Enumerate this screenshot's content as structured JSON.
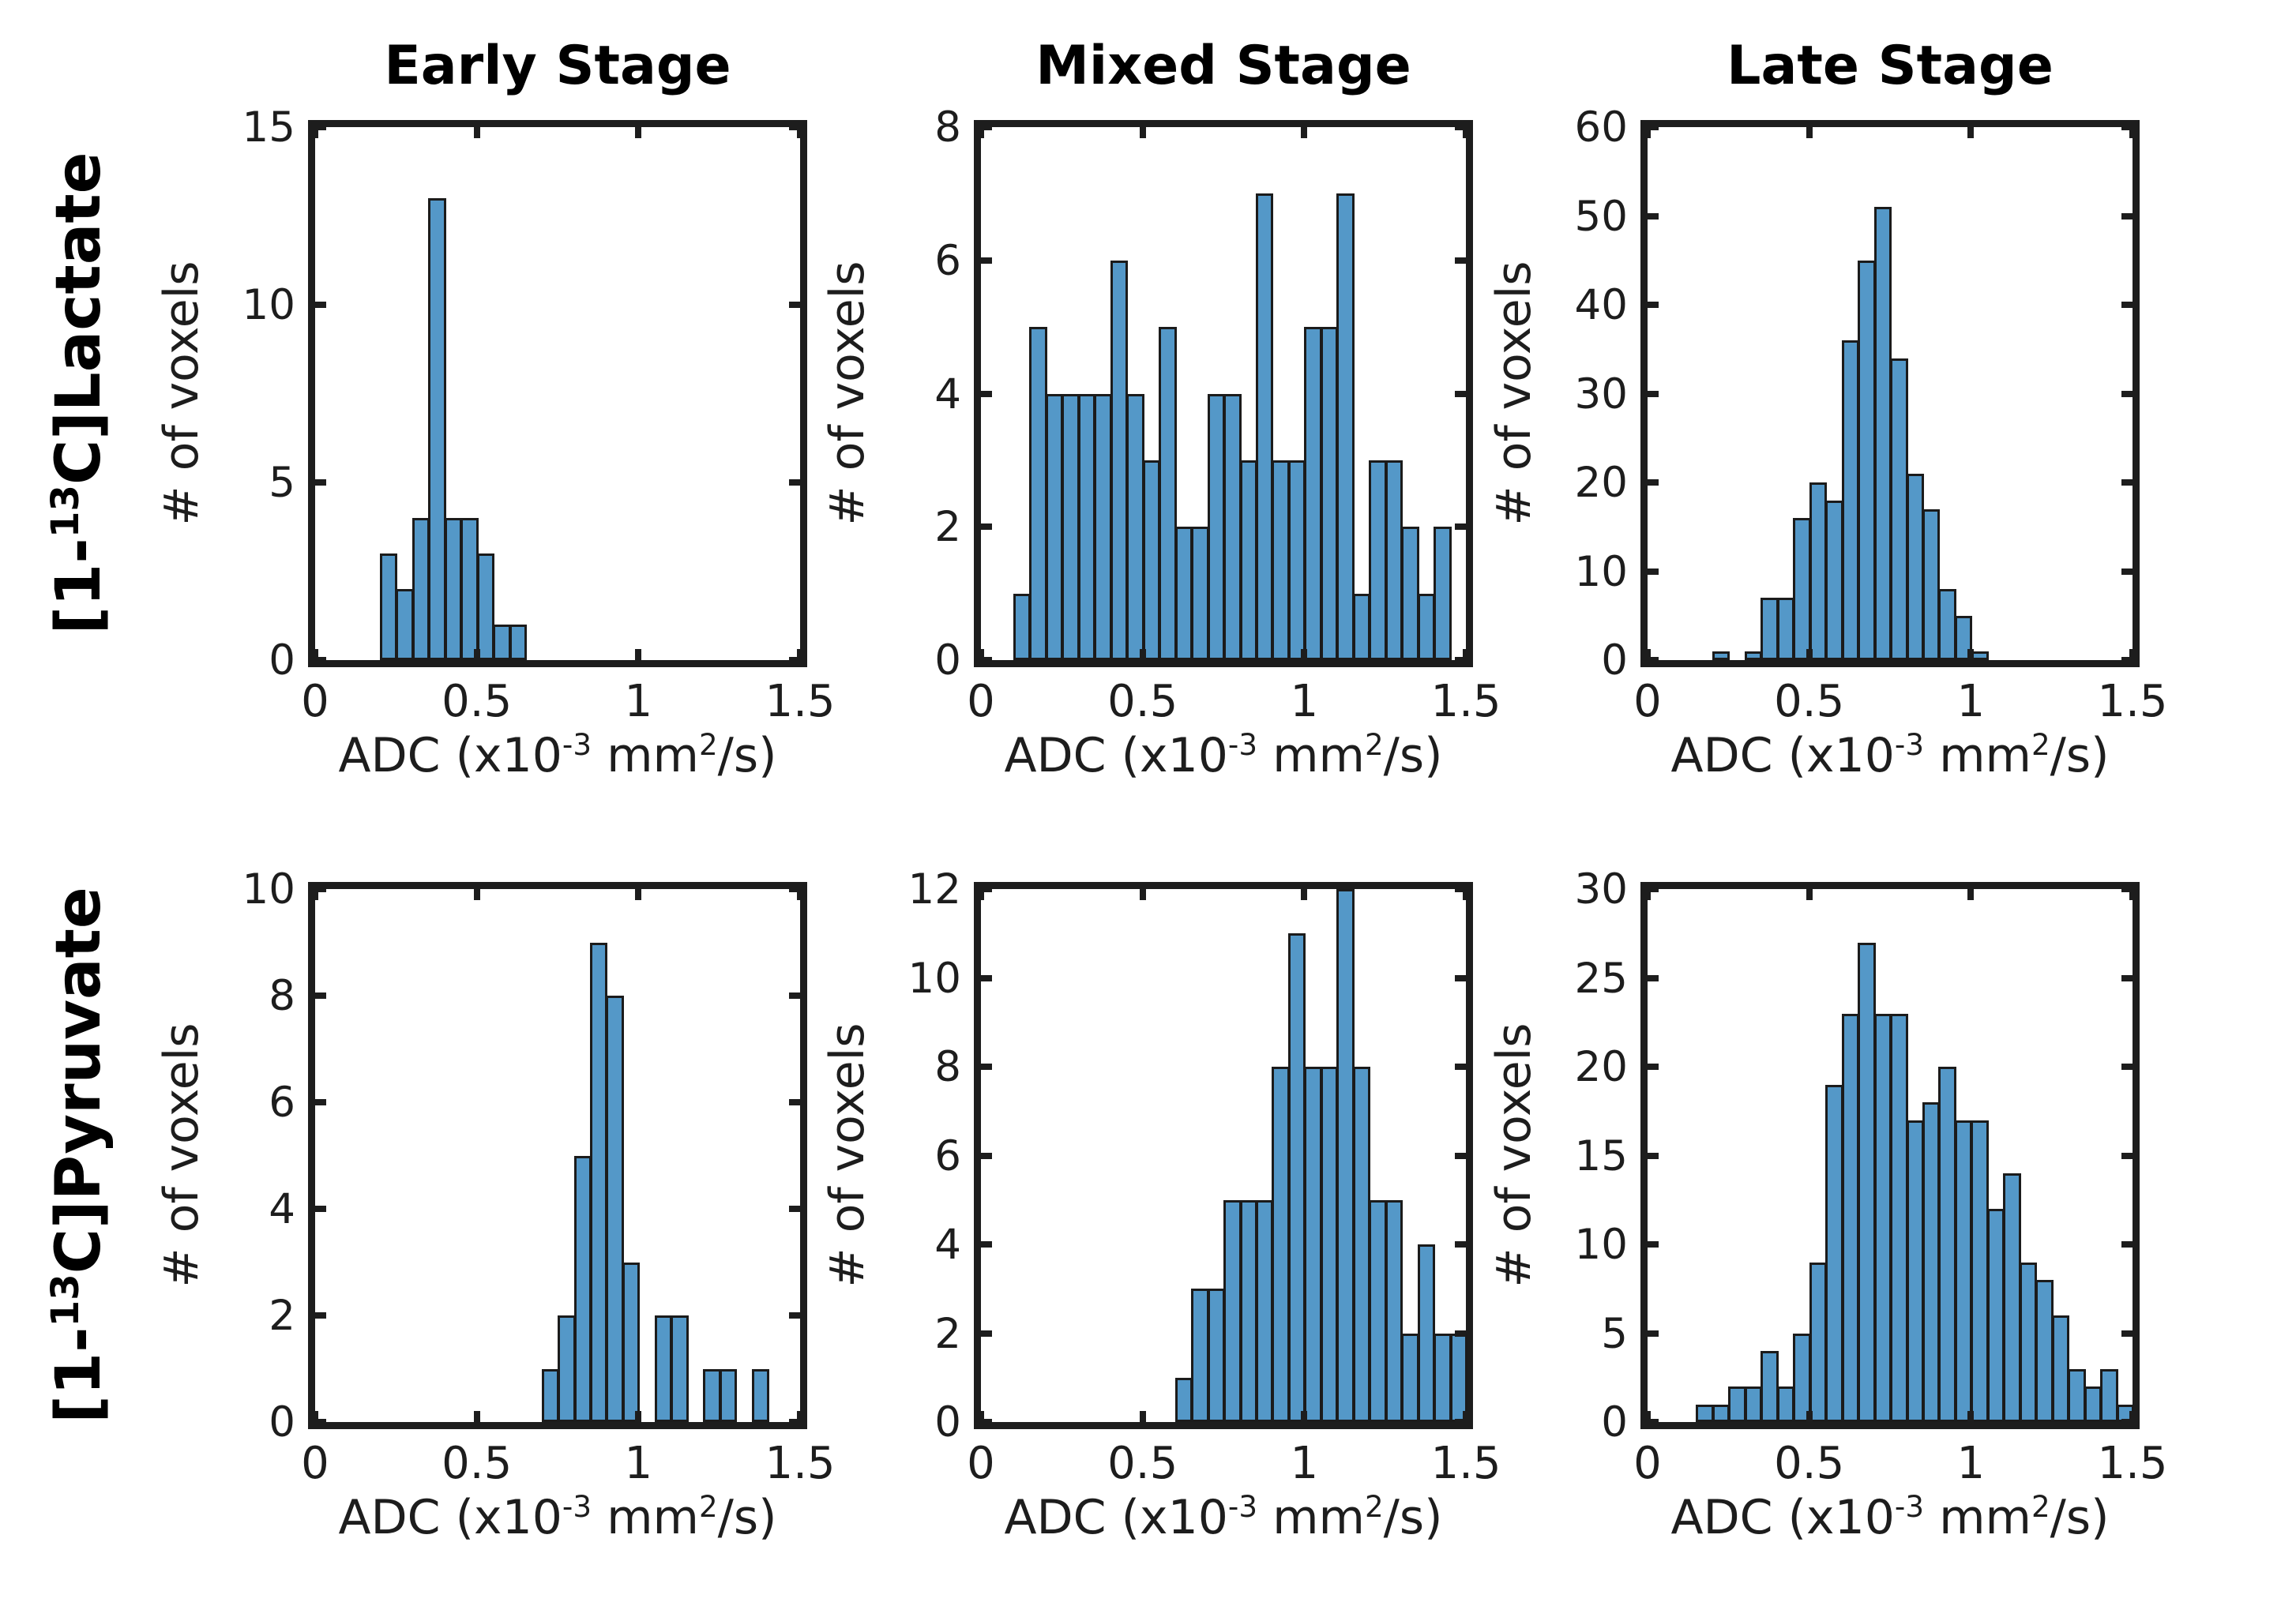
{
  "figure": {
    "background": "#ffffff",
    "bar_fill": "#5498c8",
    "bar_edge": "#1b1b1b",
    "axis_color": "#1d1d1d",
    "ylabel": "# of voxels",
    "x_tick_labels": [
      "0",
      "0.5",
      "1",
      "1.5"
    ],
    "xlabel_text": "ADC (x10-3 mm2/s)",
    "xlabel_parts": [
      {
        "text": "ADC (x10"
      },
      {
        "text": "-3",
        "sup": true
      },
      {
        "text": " mm"
      },
      {
        "text": "2",
        "sup": true
      },
      {
        "text": "/s)"
      }
    ]
  },
  "row_labels": [
    {
      "pre": "[1-",
      "sup": "13",
      "post": "C]Lactate"
    },
    {
      "pre": "[1-",
      "sup": "13",
      "post": "C]Pyruvate"
    }
  ],
  "col_titles": [
    "Early Stage",
    "Mixed Stage",
    "Late Stage"
  ],
  "chart_data": [
    {
      "id": "lactate-early",
      "type": "bar",
      "subtype": "histogram",
      "title": "Early Stage",
      "series_label": "[1-13C]Lactate",
      "xlabel": "ADC (x10-3 mm2/s)",
      "ylabel": "# of voxels",
      "xlim": [
        0,
        1.5
      ],
      "ylim": [
        0,
        15
      ],
      "x_ticks": [
        0,
        0.5,
        1,
        1.5
      ],
      "y_ticks": [
        0,
        5,
        10,
        15
      ],
      "bin_width": 0.05,
      "bin_start": 0.2,
      "values": [
        3,
        2,
        4,
        13,
        4,
        4,
        3,
        1,
        1
      ]
    },
    {
      "id": "lactate-mixed",
      "type": "bar",
      "subtype": "histogram",
      "title": "Mixed Stage",
      "series_label": "[1-13C]Lactate",
      "xlabel": "ADC (x10-3 mm2/s)",
      "ylabel": "# of voxels",
      "xlim": [
        0,
        1.5
      ],
      "ylim": [
        0,
        8
      ],
      "x_ticks": [
        0,
        0.5,
        1,
        1.5
      ],
      "y_ticks": [
        0,
        2,
        4,
        6,
        8
      ],
      "bin_width": 0.05,
      "bin_start": 0.1,
      "values": [
        1,
        5,
        4,
        4,
        4,
        4,
        6,
        4,
        3,
        5,
        2,
        2,
        4,
        4,
        3,
        7,
        3,
        3,
        5,
        5,
        7,
        1,
        3,
        3,
        2,
        1,
        2
      ]
    },
    {
      "id": "lactate-late",
      "type": "bar",
      "subtype": "histogram",
      "title": "Late Stage",
      "series_label": "[1-13C]Lactate",
      "xlabel": "ADC (x10-3 mm2/s)",
      "ylabel": "# of voxels",
      "xlim": [
        0,
        1.5
      ],
      "ylim": [
        0,
        60
      ],
      "x_ticks": [
        0,
        0.5,
        1,
        1.5
      ],
      "y_ticks": [
        0,
        10,
        20,
        30,
        40,
        50,
        60
      ],
      "bin_width": 0.05,
      "bin_start": 0.2,
      "values": [
        1,
        0,
        1,
        7,
        7,
        16,
        20,
        18,
        36,
        45,
        51,
        34,
        21,
        17,
        8,
        5,
        1
      ]
    },
    {
      "id": "pyruvate-early",
      "type": "bar",
      "subtype": "histogram",
      "title": "Early Stage",
      "series_label": "[1-13C]Pyruvate",
      "xlabel": "ADC (x10-3 mm2/s)",
      "ylabel": "# of voxels",
      "xlim": [
        0,
        1.5
      ],
      "ylim": [
        0,
        10
      ],
      "x_ticks": [
        0,
        0.5,
        1,
        1.5
      ],
      "y_ticks": [
        0,
        2,
        4,
        6,
        8,
        10
      ],
      "bin_width": 0.05,
      "bin_start": 0.7,
      "values": [
        1,
        2,
        5,
        9,
        8,
        3,
        0,
        2,
        2,
        0,
        1,
        1,
        0,
        1
      ]
    },
    {
      "id": "pyruvate-mixed",
      "type": "bar",
      "subtype": "histogram",
      "title": "Mixed Stage",
      "series_label": "[1-13C]Pyruvate",
      "xlabel": "ADC (x10-3 mm2/s)",
      "ylabel": "# of voxels",
      "xlim": [
        0,
        1.5
      ],
      "ylim": [
        0,
        12
      ],
      "x_ticks": [
        0,
        0.5,
        1,
        1.5
      ],
      "y_ticks": [
        0,
        2,
        4,
        6,
        8,
        10,
        12
      ],
      "bin_width": 0.05,
      "bin_start": 0.6,
      "values": [
        1,
        3,
        3,
        5,
        5,
        5,
        8,
        11,
        8,
        8,
        12,
        8,
        5,
        5,
        2,
        4,
        2,
        2
      ]
    },
    {
      "id": "pyruvate-late",
      "type": "bar",
      "subtype": "histogram",
      "title": "Late Stage",
      "series_label": "[1-13C]Pyruvate",
      "xlabel": "ADC (x10-3 mm2/s)",
      "ylabel": "# of voxels",
      "xlim": [
        0,
        1.5
      ],
      "ylim": [
        0,
        30
      ],
      "x_ticks": [
        0,
        0.5,
        1,
        1.5
      ],
      "y_ticks": [
        0,
        5,
        10,
        15,
        20,
        25,
        30
      ],
      "bin_width": 0.05,
      "bin_start": 0.15,
      "values": [
        1,
        1,
        2,
        2,
        4,
        2,
        5,
        9,
        19,
        23,
        27,
        23,
        23,
        17,
        18,
        20,
        17,
        17,
        12,
        14,
        9,
        8,
        6,
        3,
        2,
        3,
        1
      ]
    }
  ]
}
